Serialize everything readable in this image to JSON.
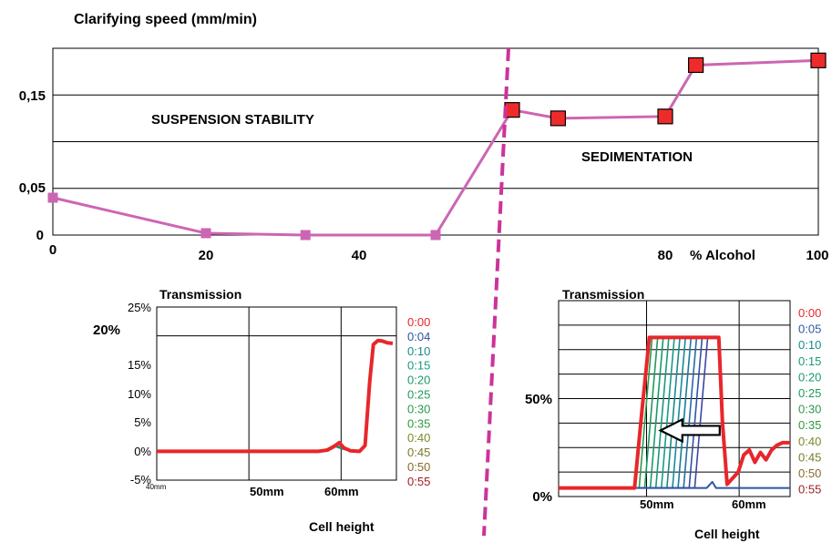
{
  "main_chart": {
    "title": "Clarifying speed (mm/min)",
    "xlabel": "% Alcohol",
    "y_ticks": [
      "0,15",
      "0,05",
      "0"
    ],
    "x_ticks": [
      "0",
      "20",
      "40",
      "80",
      "100"
    ],
    "region_left": "SUSPENSION STABILITY",
    "region_right": "SEDIMENTATION"
  },
  "left_chart": {
    "title": "Transmission",
    "y_ticks": [
      "25%",
      "15%",
      "10%",
      "5%",
      "0%",
      "-5%"
    ],
    "y_annotation": "20%",
    "x_ticks": [
      "40mm",
      "50mm",
      "60mm"
    ],
    "xlabel": "Cell height",
    "legend": [
      "0:00",
      "0:04",
      "0:10",
      "0:15",
      "0:20",
      "0:25",
      "0:30",
      "0:35",
      "0:40",
      "0:45",
      "0:50",
      "0:55"
    ]
  },
  "right_chart": {
    "title": "Transmission",
    "y_ticks": [
      "50%",
      "0%"
    ],
    "x_ticks": [
      "50mm",
      "60mm"
    ],
    "xlabel": "Cell height",
    "legend": [
      "0:00",
      "0:05",
      "0:10",
      "0:15",
      "0:20",
      "0:25",
      "0:30",
      "0:35",
      "0:40",
      "0:45",
      "0:50",
      "0:55"
    ]
  },
  "colors": {
    "line": "#cc66b3",
    "marker_red": "#ee2b2b",
    "divider": "#cc3399",
    "scan_red": "#e8262b",
    "legend_colors": [
      "#e8262b",
      "#2f54a4",
      "#1a8a8a",
      "#1a9a7a",
      "#1a9a6a",
      "#1e9a5a",
      "#2a9a4a",
      "#2f9a3a",
      "#7a8a2a",
      "#7a7a2a",
      "#8a6a2a",
      "#a02020"
    ]
  },
  "chart_data": [
    {
      "type": "line",
      "title": "Clarifying speed (mm/min)",
      "xlabel": "% Alcohol",
      "ylabel": "",
      "xlim": [
        0,
        100
      ],
      "ylim": [
        0,
        0.2
      ],
      "series": [
        {
          "x": [
            0,
            20,
            33,
            50,
            60,
            66,
            80,
            84,
            100
          ],
          "y": [
            0.04,
            0.002,
            0.0,
            0.0,
            0.134,
            0.125,
            0.127,
            0.182,
            0.187
          ],
          "markers": [
            "small",
            "small",
            "small",
            "small",
            "big",
            "big",
            "big",
            "big",
            "big"
          ]
        }
      ]
    },
    {
      "type": "line",
      "title": "Transmission",
      "xlabel": "Cell height",
      "ylabel": "",
      "xlim": [
        40,
        66
      ],
      "ylim": [
        -5,
        25
      ],
      "series": [
        {
          "x": [
            40,
            57.5,
            58.5,
            59.2,
            59.8,
            60.3,
            61,
            62,
            62.6,
            63.1,
            63.5,
            64,
            64.5,
            65,
            65.6
          ],
          "y": [
            0,
            0,
            0.2,
            0.8,
            1.5,
            0.6,
            0.1,
            0,
            1,
            12,
            18.5,
            19.2,
            19.1,
            18.8,
            18.7
          ]
        },
        {
          "x": [
            57.5,
            58.5,
            59.3,
            60.2,
            61,
            62
          ],
          "y": [
            0,
            0.3,
            0.9,
            0.4,
            0.1,
            0
          ]
        },
        {
          "x": [
            57.5,
            58.5,
            59.3,
            60.2,
            61,
            62
          ],
          "y": [
            0,
            0.4,
            1.1,
            0.5,
            0.1,
            0
          ]
        }
      ]
    },
    {
      "type": "line",
      "title": "Transmission",
      "xlabel": "Cell height",
      "ylabel": "",
      "xlim": [
        40,
        65
      ],
      "ylim": [
        0,
        80
      ],
      "series": [
        {
          "x": [
            40,
            48.2,
            49,
            49.8,
            57.3,
            57.7,
            58.2,
            59.4,
            60,
            60.6,
            61.2,
            61.8,
            62.4,
            63,
            63.6,
            64.2,
            65
          ],
          "y": [
            3.5,
            3.5,
            35,
            65,
            65,
            30,
            5,
            10,
            17,
            19,
            14,
            18,
            15,
            19,
            21,
            22,
            22
          ]
        },
        {
          "x": [
            40,
            56,
            56.6,
            57,
            57.5,
            65
          ],
          "y": [
            3.5,
            3.5,
            6,
            3.5,
            3.5,
            3.5
          ]
        }
      ],
      "front_start_x": [
        49.5,
        50.1,
        50.7,
        51.3,
        51.9,
        52.5,
        53.1,
        53.7,
        54.3,
        54.9,
        55.5
      ],
      "front_end_x": 57.4,
      "plateau_y": 65,
      "baseline_y": 3.5,
      "arrow": {
        "x_from": 57.4,
        "x_to": 51,
        "y": 27,
        "direction": "left"
      }
    }
  ]
}
